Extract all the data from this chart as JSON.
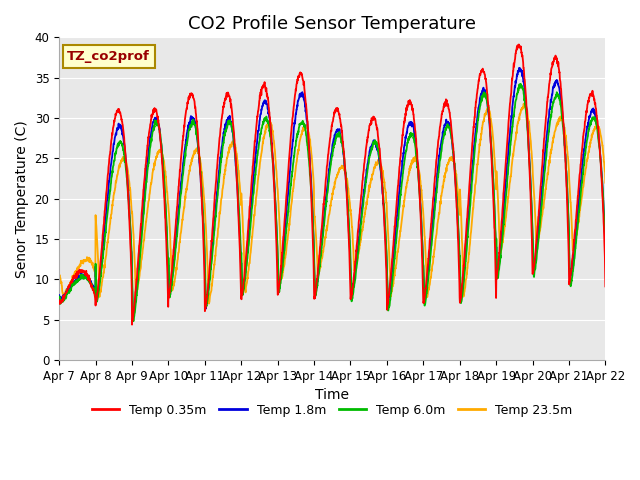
{
  "title": "CO2 Profile Sensor Temperature",
  "ylabel": "Senor Temperature (C)",
  "xlabel": "Time",
  "ylim": [
    0,
    40
  ],
  "yticks": [
    0,
    5,
    10,
    15,
    20,
    25,
    30,
    35,
    40
  ],
  "xtick_labels": [
    "Apr 7",
    "Apr 8",
    "Apr 9",
    "Apr 10",
    "Apr 11",
    "Apr 12",
    "Apr 13",
    "Apr 14",
    "Apr 15",
    "Apr 16",
    "Apr 17",
    "Apr 18",
    "Apr 19",
    "Apr 20",
    "Apr 21",
    "Apr 22"
  ],
  "legend_label": "TZ_co2prof",
  "legend_bg": "#ffffcc",
  "legend_edge": "#aa8800",
  "line_colors": [
    "#ff0000",
    "#0000dd",
    "#00bb00",
    "#ffaa00"
  ],
  "line_labels": [
    "Temp 0.35m",
    "Temp 1.8m",
    "Temp 6.0m",
    "Temp 23.5m"
  ],
  "background_color": "#e8e8e8",
  "title_fontsize": 13,
  "axis_label_fontsize": 10,
  "tick_fontsize": 8.5
}
